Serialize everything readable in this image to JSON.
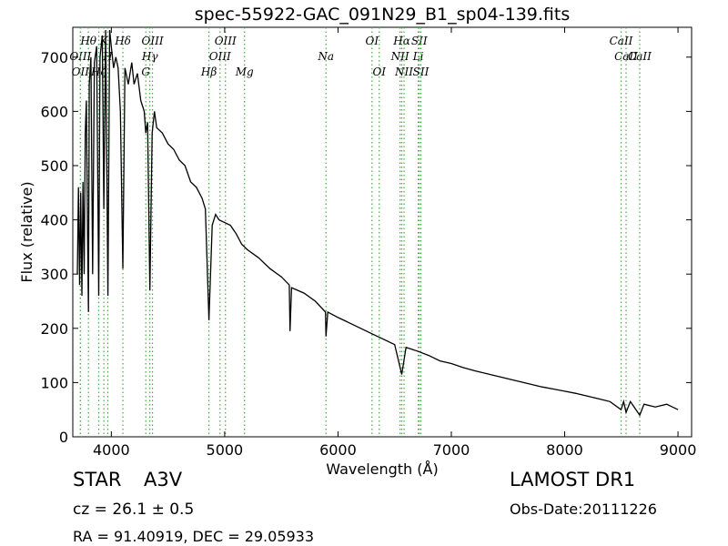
{
  "chart_data": {
    "type": "line",
    "title": "spec-55922-GAC_091N29_B1_sp04-139.fits",
    "x_label": "Wavelength (Å)",
    "y_label": "Flux (relative)",
    "xlim": [
      3660,
      9120
    ],
    "ylim": [
      0,
      755
    ],
    "xticks": [
      4000,
      5000,
      6000,
      7000,
      8000,
      9000
    ],
    "yticks": [
      0,
      100,
      200,
      300,
      400,
      500,
      600,
      700
    ],
    "color": "#000000",
    "line_color": "#44aa44",
    "x": [
      3700,
      3710,
      3720,
      3730,
      3740,
      3750,
      3760,
      3770,
      3780,
      3790,
      3798,
      3805,
      3820,
      3835,
      3850,
      3870,
      3889,
      3900,
      3920,
      3934,
      3950,
      3970,
      3985,
      4000,
      4020,
      4040,
      4060,
      4080,
      4102,
      4120,
      4150,
      4180,
      4200,
      4230,
      4260,
      4290,
      4304,
      4320,
      4340,
      4360,
      4380,
      4400,
      4450,
      4500,
      4550,
      4600,
      4650,
      4700,
      4750,
      4800,
      4830,
      4861,
      4890,
      4920,
      4950,
      5000,
      5050,
      5100,
      5150,
      5200,
      5300,
      5400,
      5500,
      5570,
      5577,
      5590,
      5700,
      5800,
      5890,
      5894,
      5910,
      6000,
      6100,
      6200,
      6300,
      6400,
      6500,
      6563,
      6600,
      6700,
      6800,
      6900,
      7000,
      7100,
      7200,
      7300,
      7400,
      7500,
      7600,
      7700,
      7800,
      7900,
      8000,
      8100,
      8200,
      8300,
      8400,
      8498,
      8520,
      8542,
      8580,
      8662,
      8700,
      8800,
      8900,
      9000
    ],
    "values": [
      300,
      460,
      280,
      450,
      260,
      470,
      300,
      560,
      620,
      380,
      230,
      650,
      700,
      300,
      690,
      720,
      260,
      700,
      740,
      420,
      750,
      260,
      750,
      720,
      680,
      700,
      680,
      600,
      310,
      680,
      650,
      690,
      650,
      670,
      620,
      600,
      560,
      580,
      270,
      560,
      600,
      570,
      560,
      540,
      530,
      510,
      500,
      470,
      460,
      440,
      420,
      215,
      390,
      410,
      400,
      395,
      390,
      375,
      355,
      345,
      330,
      310,
      295,
      280,
      195,
      275,
      265,
      250,
      230,
      185,
      230,
      220,
      210,
      200,
      190,
      180,
      170,
      115,
      165,
      158,
      150,
      140,
      135,
      128,
      122,
      117,
      112,
      107,
      102,
      97,
      92,
      88,
      84,
      80,
      75,
      70,
      65,
      50,
      65,
      45,
      65,
      40,
      60,
      55,
      60,
      50
    ],
    "lines": [
      {
        "label": "Hθ",
        "x": 3798
      },
      {
        "label": "OIII",
        "x": 3727
      },
      {
        "label": "OII",
        "x": 3727
      },
      {
        "label": "K",
        "x": 3934
      },
      {
        "label": "H",
        "x": 3969
      },
      {
        "label": "Hζ",
        "x": 3889
      },
      {
        "label": "Hδ",
        "x": 4102
      },
      {
        "label": "Hγ",
        "x": 4340
      },
      {
        "label": "G",
        "x": 4304
      },
      {
        "label": "OIII",
        "x": 4363
      },
      {
        "label": "OIII",
        "x": 4959
      },
      {
        "label": "Hβ",
        "x": 4861
      },
      {
        "label": "OIII",
        "x": 5007
      },
      {
        "label": "Na",
        "x": 5894
      },
      {
        "label": "Mg",
        "x": 5175
      },
      {
        "label": "OI",
        "x": 6300
      },
      {
        "label": "NII",
        "x": 6548
      },
      {
        "label": "OI",
        "x": 6364
      },
      {
        "label": "Hα",
        "x": 6563
      },
      {
        "label": "Li",
        "x": 6708
      },
      {
        "label": "NII",
        "x": 6583
      },
      {
        "label": "SII",
        "x": 6717
      },
      {
        "label": "CaII",
        "x": 8542
      },
      {
        "label": "SII",
        "x": 6731
      },
      {
        "label": "CaII",
        "x": 8498
      },
      {
        "label": "CaII",
        "x": 8662
      }
    ],
    "info": {
      "class": "STAR",
      "subclass": "A3V",
      "cz": "cz = 26.1 ± 0.5",
      "coords": "RA = 91.40919, DEC = 29.05933",
      "survey": "LAMOST DR1",
      "obs_date": "Obs-Date:20111226"
    }
  }
}
